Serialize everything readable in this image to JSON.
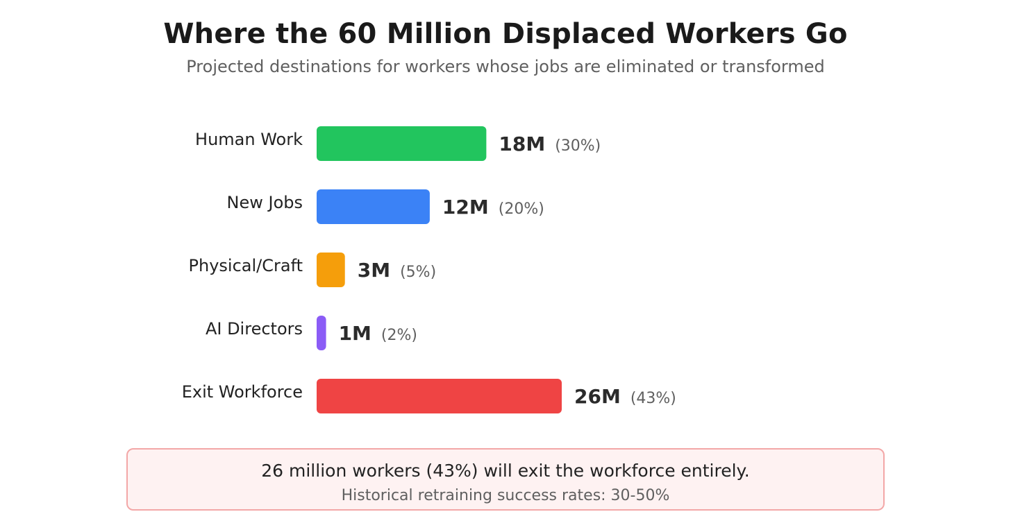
{
  "title": "Where the 60 Million Displaced Workers Go",
  "subtitle": "Projected destinations for workers whose jobs are eliminated or transformed",
  "chart_data": {
    "type": "bar",
    "orientation": "horizontal",
    "categories": [
      "Human Work",
      "New Jobs",
      "Physical/Craft",
      "AI Directors",
      "Exit Workforce"
    ],
    "values": [
      18,
      12,
      3,
      1,
      26
    ],
    "value_labels": [
      "18M",
      "12M",
      "3M",
      "1M",
      "26M"
    ],
    "percent_labels": [
      "(30%)",
      "(20%)",
      "(5%)",
      "(2%)",
      "(43%)"
    ],
    "colors": [
      "#22c55e",
      "#3b82f6",
      "#f59e0b",
      "#8b5cf6",
      "#ef4444"
    ],
    "xlim": [
      0,
      26
    ],
    "grid": false
  },
  "callout": {
    "main": "26 million workers (43%) will exit the workforce entirely.",
    "sub": "Historical retraining success rates: 30-50%"
  }
}
